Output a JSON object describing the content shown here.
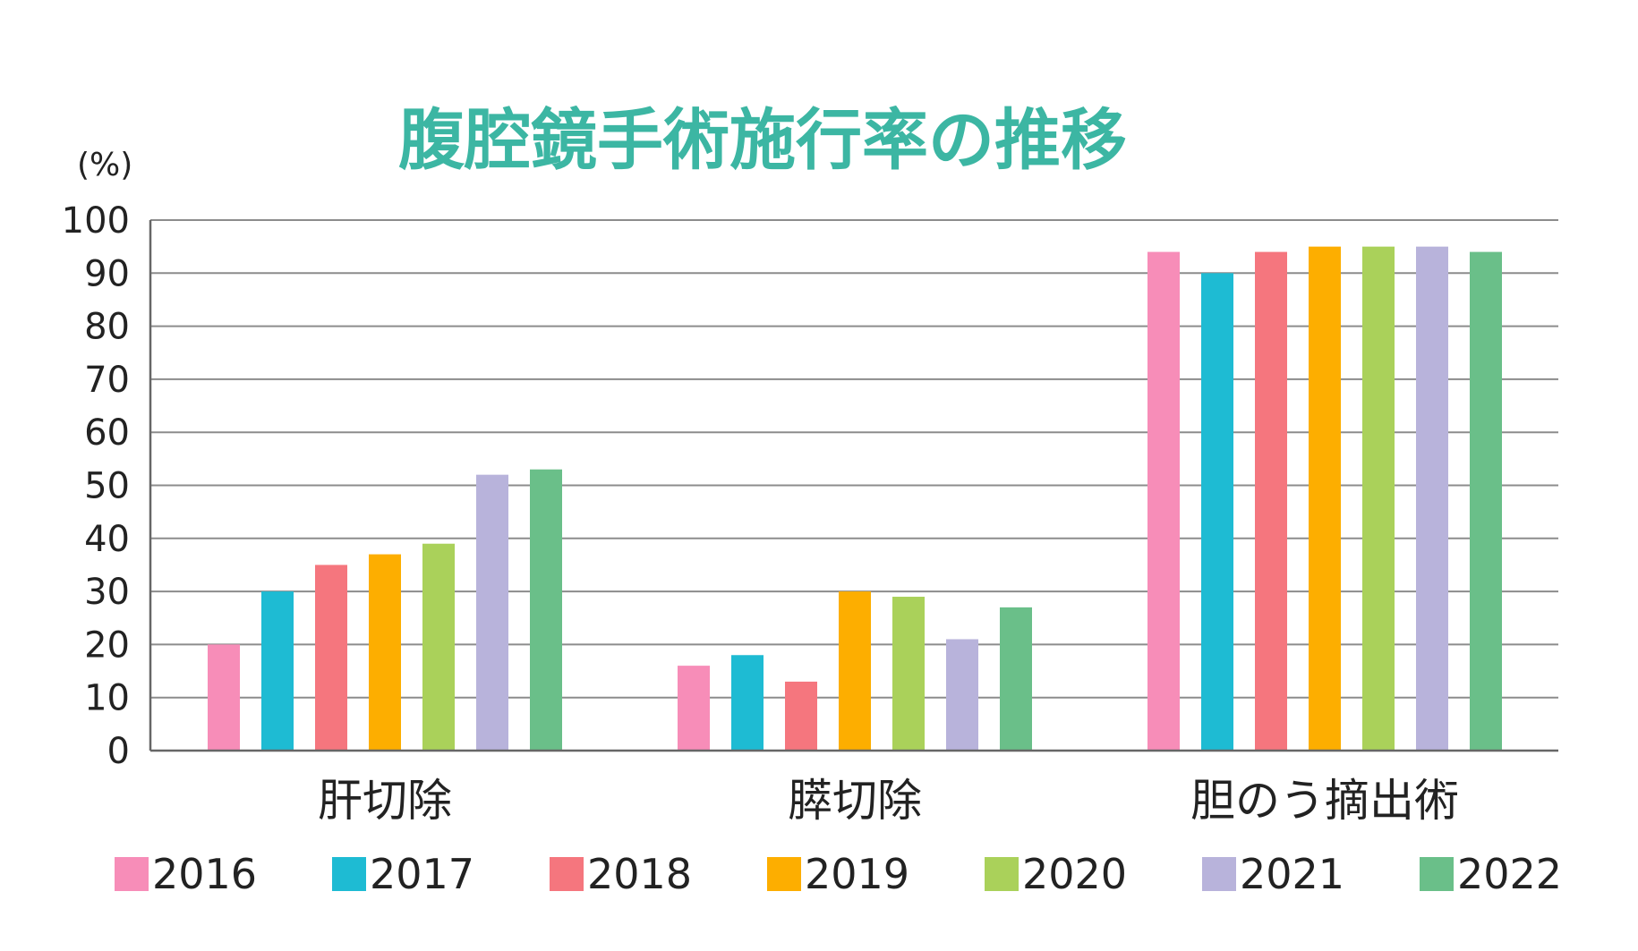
{
  "chart_data": {
    "type": "bar",
    "title": "腹腔鏡手術施行率の推移",
    "unit_label": "(%)",
    "ylim": [
      0,
      100
    ],
    "yticks": [
      0,
      10,
      20,
      30,
      40,
      50,
      60,
      70,
      80,
      90,
      100
    ],
    "grid": true,
    "legend_position": "bottom",
    "categories": [
      "肝切除",
      "膵切除",
      "胆のう摘出術"
    ],
    "series": [
      {
        "name": "2016",
        "color": "#f78db8",
        "values": [
          20,
          16,
          94
        ]
      },
      {
        "name": "2017",
        "color": "#1ebbd3",
        "values": [
          30,
          18,
          90
        ]
      },
      {
        "name": "2018",
        "color": "#f5767e",
        "values": [
          35,
          13,
          94
        ]
      },
      {
        "name": "2019",
        "color": "#fdae00",
        "values": [
          37,
          30,
          95
        ]
      },
      {
        "name": "2020",
        "color": "#aad15a",
        "values": [
          39,
          29,
          95
        ]
      },
      {
        "name": "2021",
        "color": "#b8b3db",
        "values": [
          52,
          21,
          95
        ]
      },
      {
        "name": "2022",
        "color": "#6abf89",
        "values": [
          53,
          27,
          94
        ]
      }
    ]
  }
}
